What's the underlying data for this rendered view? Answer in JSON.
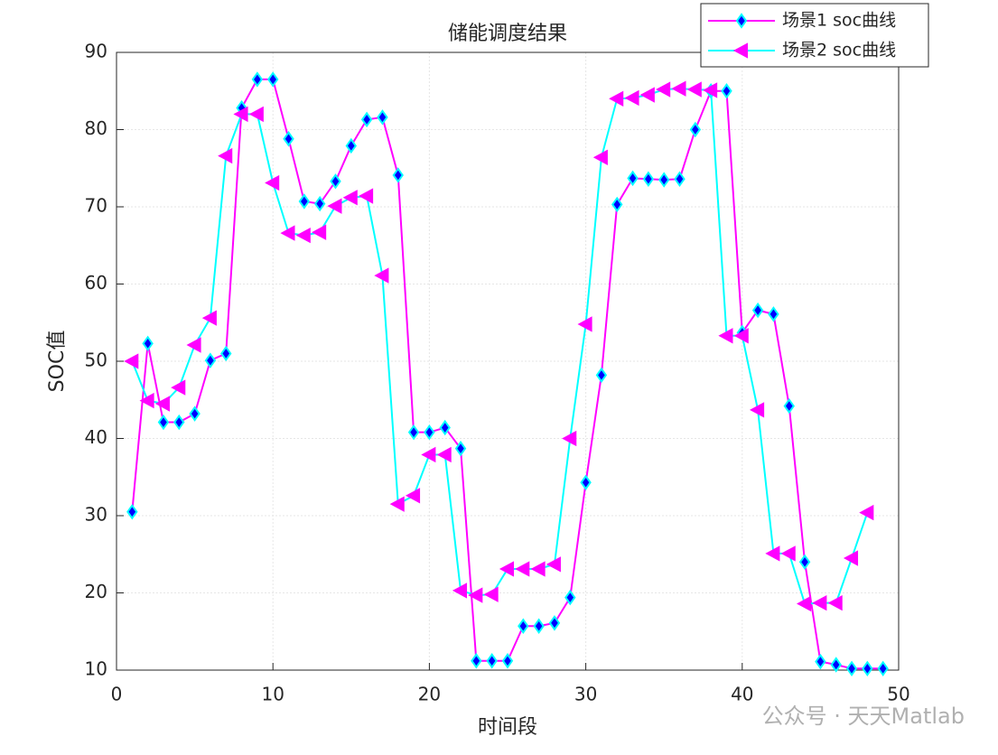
{
  "chart_data": {
    "type": "line",
    "title": "储能调度结果",
    "xlabel": "时间段",
    "ylabel": "SOC值",
    "watermark": "公众号 · 天天Matlab",
    "xlim": [
      0,
      50
    ],
    "xticks": [
      0,
      10,
      20,
      30,
      40,
      50
    ],
    "ylim": [
      10,
      90
    ],
    "yticks": [
      10,
      20,
      30,
      40,
      50,
      60,
      70,
      80,
      90
    ],
    "grid": true,
    "legend": "top-right",
    "series": [
      {
        "name": "场景1 soc曲线",
        "color": "#ff00ff",
        "marker": "diamond",
        "marker_edge": "#00ffff",
        "marker_fill": "#0000ff",
        "x": [
          1,
          2,
          3,
          4,
          5,
          6,
          7,
          8,
          9,
          10,
          11,
          12,
          13,
          14,
          15,
          16,
          17,
          18,
          19,
          20,
          21,
          22,
          23,
          24,
          25,
          26,
          27,
          28,
          29,
          30,
          31,
          32,
          33,
          34,
          35,
          36,
          37,
          38,
          39,
          40,
          41,
          42,
          43,
          44,
          45,
          46,
          47,
          48,
          49
        ],
        "values": [
          30.5,
          52.3,
          42.1,
          42.1,
          43.2,
          50.1,
          51.0,
          82.8,
          86.5,
          86.5,
          78.8,
          70.7,
          70.4,
          73.3,
          77.9,
          81.3,
          81.6,
          74.1,
          40.8,
          40.8,
          41.4,
          38.7,
          11.2,
          11.2,
          11.2,
          15.7,
          15.7,
          16.1,
          19.4,
          34.3,
          48.2,
          70.3,
          73.7,
          73.6,
          73.5,
          73.6,
          80.0,
          85.0,
          85.0,
          53.7,
          56.6,
          56.1,
          44.2,
          24.0,
          11.1,
          10.7,
          10.2,
          10.2,
          10.2
        ]
      },
      {
        "name": "场景2 soc曲线",
        "color": "#00ffff",
        "marker": "triangle-left",
        "marker_edge": "#ff00ff",
        "marker_fill": "#ff00ff",
        "x": [
          1,
          2,
          3,
          4,
          5,
          6,
          7,
          8,
          9,
          10,
          11,
          12,
          13,
          14,
          15,
          16,
          17,
          18,
          19,
          20,
          21,
          22,
          23,
          24,
          25,
          26,
          27,
          28,
          29,
          30,
          31,
          32,
          33,
          34,
          35,
          36,
          37,
          38,
          39,
          40,
          41,
          42,
          43,
          44,
          45,
          46,
          47,
          48
        ],
        "values": [
          50.0,
          44.9,
          44.5,
          46.6,
          52.1,
          55.6,
          76.6,
          82.0,
          82.0,
          73.1,
          66.6,
          66.3,
          66.7,
          70.1,
          71.2,
          71.4,
          61.1,
          31.5,
          32.6,
          37.9,
          37.9,
          20.3,
          19.7,
          19.8,
          23.1,
          23.1,
          23.1,
          23.7,
          40.0,
          54.8,
          76.4,
          84.0,
          84.1,
          84.5,
          85.2,
          85.3,
          85.2,
          85.1,
          53.3,
          53.3,
          43.7,
          25.1,
          25.1,
          18.6,
          18.7,
          18.7,
          24.5,
          30.4
        ]
      }
    ]
  }
}
